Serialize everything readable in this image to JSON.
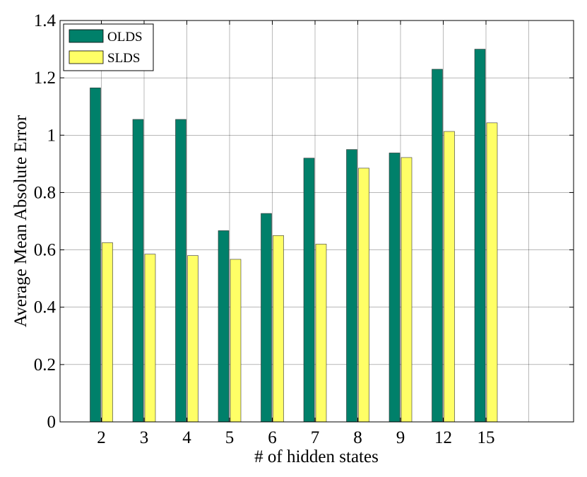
{
  "chart_data": {
    "type": "bar",
    "categories": [
      "2",
      "3",
      "4",
      "5",
      "6",
      "7",
      "8",
      "9",
      "12",
      "15"
    ],
    "series": [
      {
        "name": "OLDS",
        "color": "#00806A",
        "values": [
          1.165,
          1.055,
          1.055,
          0.667,
          0.727,
          0.92,
          0.95,
          0.938,
          1.23,
          1.3
        ]
      },
      {
        "name": "SLDS",
        "color": "#FFFF66",
        "values": [
          0.625,
          0.585,
          0.58,
          0.567,
          0.65,
          0.62,
          0.885,
          0.922,
          1.013,
          1.043
        ]
      }
    ],
    "xlabel": "# of hidden states",
    "ylabel": "Average Mean Absolute Error",
    "ylim": [
      0,
      1.4
    ],
    "yticks": [
      0,
      0.2,
      0.4,
      0.6,
      0.8,
      1,
      1.2,
      1.4
    ],
    "ytick_labels": [
      "0",
      "0.2",
      "0.4",
      "0.6",
      "0.8",
      "1",
      "1.2",
      "1.4"
    ],
    "grid": true,
    "legend_position": "top-left"
  }
}
